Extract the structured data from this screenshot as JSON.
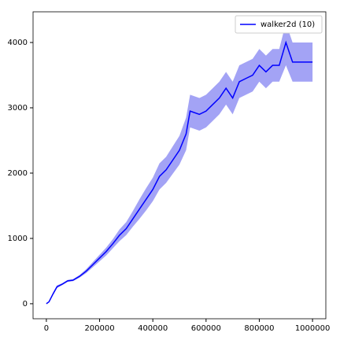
{
  "chart_data": {
    "type": "line",
    "x": [
      0,
      10000,
      25000,
      40000,
      60000,
      80000,
      100000,
      125000,
      150000,
      175000,
      200000,
      225000,
      250000,
      275000,
      300000,
      325000,
      350000,
      375000,
      400000,
      425000,
      450000,
      475000,
      500000,
      525000,
      540000,
      575000,
      600000,
      625000,
      650000,
      675000,
      700000,
      725000,
      750000,
      775000,
      800000,
      825000,
      850000,
      875000,
      900000,
      925000,
      950000,
      975000,
      1000000
    ],
    "series": [
      {
        "name": "walker2d (10)",
        "color": "#0000ff",
        "band_color": "#6666ee",
        "values": [
          0,
          30,
          150,
          260,
          300,
          350,
          360,
          420,
          500,
          600,
          700,
          800,
          920,
          1050,
          1150,
          1300,
          1450,
          1600,
          1750,
          1950,
          2050,
          2200,
          2350,
          2600,
          2950,
          2900,
          2950,
          3050,
          3150,
          3300,
          3150,
          3400,
          3450,
          3500,
          3650,
          3550,
          3650,
          3650,
          4000,
          3700,
          3700,
          3700,
          3700
        ],
        "lower": [
          0,
          20,
          130,
          240,
          285,
          335,
          345,
          400,
          470,
          560,
          650,
          740,
          850,
          960,
          1050,
          1180,
          1300,
          1430,
          1570,
          1750,
          1850,
          1990,
          2130,
          2350,
          2700,
          2650,
          2700,
          2800,
          2900,
          3050,
          2900,
          3150,
          3200,
          3250,
          3400,
          3300,
          3400,
          3400,
          3650,
          3400,
          3400,
          3400,
          3400
        ],
        "upper": [
          0,
          40,
          170,
          280,
          315,
          365,
          375,
          440,
          530,
          640,
          750,
          860,
          990,
          1140,
          1250,
          1420,
          1600,
          1770,
          1930,
          2150,
          2250,
          2410,
          2570,
          2850,
          3200,
          3150,
          3200,
          3300,
          3400,
          3550,
          3400,
          3650,
          3700,
          3750,
          3900,
          3800,
          3900,
          3900,
          4300,
          4000,
          4000,
          4000,
          4000
        ]
      }
    ],
    "xlim": [
      -50000,
      1050000
    ],
    "ylim": [
      -230,
      4470
    ],
    "xticks": [
      0,
      200000,
      400000,
      600000,
      800000,
      1000000
    ],
    "yticks": [
      0,
      1000,
      2000,
      3000,
      4000
    ],
    "legend": "upper right"
  }
}
